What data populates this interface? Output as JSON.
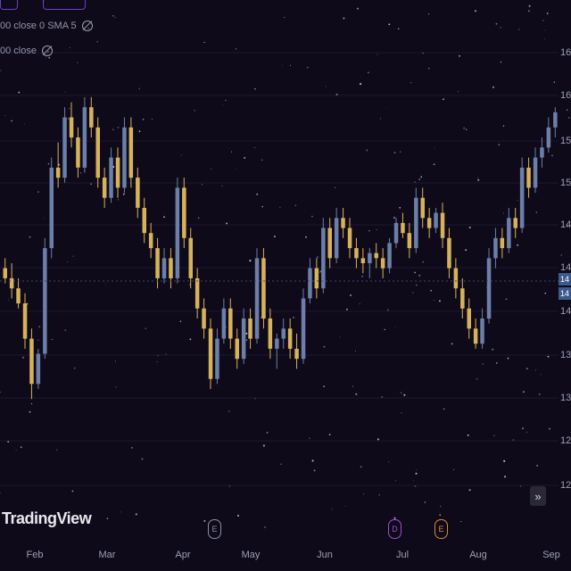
{
  "legend": {
    "line1": "00 close 0 SMA 5",
    "line2": "00 close"
  },
  "brand": "TradingView",
  "scroll_glyph": "»",
  "events": [
    {
      "letter": "E",
      "color": "#8a8fa3"
    },
    {
      "letter": "D",
      "color": "#9b4fd6"
    },
    {
      "letter": "E",
      "color": "#d38a3a"
    }
  ],
  "price_labels": [
    "16",
    "16",
    "15",
    "15",
    "14",
    "14",
    "14",
    "13",
    "13",
    "12",
    "12"
  ],
  "price_tags": {
    "upper": "14",
    "lower": "14"
  },
  "colors": {
    "up": "#6b7fa8",
    "down": "#d6b25a",
    "background": "#0f0a1a"
  },
  "chart_data": {
    "type": "candlestick",
    "x_labels": [
      "Feb",
      "Mar",
      "Apr",
      "May",
      "Jun",
      "Jul",
      "Aug",
      "Sep"
    ],
    "ylim": [
      11.8,
      16.5
    ],
    "series": [
      {
        "o": 14.1,
        "h": 14.2,
        "l": 13.95,
        "c": 14.0
      },
      {
        "o": 14.0,
        "h": 14.15,
        "l": 13.8,
        "c": 13.9
      },
      {
        "o": 13.9,
        "h": 14.0,
        "l": 13.7,
        "c": 13.75
      },
      {
        "o": 13.75,
        "h": 13.85,
        "l": 13.3,
        "c": 13.4
      },
      {
        "o": 13.4,
        "h": 13.5,
        "l": 12.8,
        "c": 12.95
      },
      {
        "o": 12.95,
        "h": 13.3,
        "l": 12.9,
        "c": 13.25
      },
      {
        "o": 13.25,
        "h": 14.4,
        "l": 13.2,
        "c": 14.3
      },
      {
        "o": 14.3,
        "h": 15.2,
        "l": 14.2,
        "c": 15.1
      },
      {
        "o": 15.1,
        "h": 15.35,
        "l": 14.9,
        "c": 15.0
      },
      {
        "o": 15.0,
        "h": 15.7,
        "l": 14.95,
        "c": 15.6
      },
      {
        "o": 15.6,
        "h": 15.75,
        "l": 15.3,
        "c": 15.4
      },
      {
        "o": 15.4,
        "h": 15.5,
        "l": 15.0,
        "c": 15.1
      },
      {
        "o": 15.1,
        "h": 15.8,
        "l": 15.05,
        "c": 15.7
      },
      {
        "o": 15.7,
        "h": 15.8,
        "l": 15.4,
        "c": 15.5
      },
      {
        "o": 15.5,
        "h": 15.6,
        "l": 14.9,
        "c": 15.0
      },
      {
        "o": 15.0,
        "h": 15.1,
        "l": 14.7,
        "c": 14.8
      },
      {
        "o": 14.8,
        "h": 15.3,
        "l": 14.75,
        "c": 15.2
      },
      {
        "o": 15.2,
        "h": 15.3,
        "l": 14.8,
        "c": 14.9
      },
      {
        "o": 14.9,
        "h": 15.6,
        "l": 14.85,
        "c": 15.5
      },
      {
        "o": 15.5,
        "h": 15.6,
        "l": 14.9,
        "c": 15.0
      },
      {
        "o": 15.0,
        "h": 15.1,
        "l": 14.6,
        "c": 14.7
      },
      {
        "o": 14.7,
        "h": 14.8,
        "l": 14.35,
        "c": 14.45
      },
      {
        "o": 14.45,
        "h": 14.55,
        "l": 14.2,
        "c": 14.3
      },
      {
        "o": 14.3,
        "h": 14.4,
        "l": 13.9,
        "c": 14.0
      },
      {
        "o": 14.0,
        "h": 14.3,
        "l": 13.95,
        "c": 14.2
      },
      {
        "o": 14.2,
        "h": 14.3,
        "l": 13.9,
        "c": 14.0
      },
      {
        "o": 14.0,
        "h": 15.0,
        "l": 13.95,
        "c": 14.9
      },
      {
        "o": 14.9,
        "h": 15.0,
        "l": 14.3,
        "c": 14.4
      },
      {
        "o": 14.4,
        "h": 14.5,
        "l": 13.9,
        "c": 14.0
      },
      {
        "o": 14.0,
        "h": 14.1,
        "l": 13.6,
        "c": 13.7
      },
      {
        "o": 13.7,
        "h": 13.8,
        "l": 13.4,
        "c": 13.5
      },
      {
        "o": 13.5,
        "h": 13.6,
        "l": 12.9,
        "c": 13.0
      },
      {
        "o": 13.0,
        "h": 13.5,
        "l": 12.95,
        "c": 13.4
      },
      {
        "o": 13.4,
        "h": 13.8,
        "l": 13.35,
        "c": 13.7
      },
      {
        "o": 13.7,
        "h": 13.8,
        "l": 13.3,
        "c": 13.4
      },
      {
        "o": 13.4,
        "h": 13.5,
        "l": 13.1,
        "c": 13.2
      },
      {
        "o": 13.2,
        "h": 13.7,
        "l": 13.15,
        "c": 13.6
      },
      {
        "o": 13.6,
        "h": 13.7,
        "l": 13.3,
        "c": 13.4
      },
      {
        "o": 13.4,
        "h": 14.3,
        "l": 13.35,
        "c": 14.2
      },
      {
        "o": 14.2,
        "h": 14.3,
        "l": 13.5,
        "c": 13.6
      },
      {
        "o": 13.6,
        "h": 13.7,
        "l": 13.2,
        "c": 13.3
      },
      {
        "o": 13.3,
        "h": 13.45,
        "l": 13.1,
        "c": 13.4
      },
      {
        "o": 13.4,
        "h": 13.6,
        "l": 13.3,
        "c": 13.5
      },
      {
        "o": 13.5,
        "h": 13.6,
        "l": 13.2,
        "c": 13.3
      },
      {
        "o": 13.3,
        "h": 13.45,
        "l": 13.1,
        "c": 13.2
      },
      {
        "o": 13.2,
        "h": 13.9,
        "l": 13.15,
        "c": 13.8
      },
      {
        "o": 13.8,
        "h": 14.2,
        "l": 13.75,
        "c": 14.1
      },
      {
        "o": 14.1,
        "h": 14.2,
        "l": 13.8,
        "c": 13.9
      },
      {
        "o": 13.9,
        "h": 14.6,
        "l": 13.85,
        "c": 14.5
      },
      {
        "o": 14.5,
        "h": 14.6,
        "l": 14.1,
        "c": 14.2
      },
      {
        "o": 14.2,
        "h": 14.7,
        "l": 14.15,
        "c": 14.6
      },
      {
        "o": 14.6,
        "h": 14.7,
        "l": 14.4,
        "c": 14.5
      },
      {
        "o": 14.5,
        "h": 14.6,
        "l": 14.2,
        "c": 14.3
      },
      {
        "o": 14.3,
        "h": 14.4,
        "l": 14.1,
        "c": 14.2
      },
      {
        "o": 14.2,
        "h": 14.3,
        "l": 14.05,
        "c": 14.15
      },
      {
        "o": 14.15,
        "h": 14.3,
        "l": 14.0,
        "c": 14.25
      },
      {
        "o": 14.25,
        "h": 14.35,
        "l": 14.1,
        "c": 14.2
      },
      {
        "o": 14.2,
        "h": 14.3,
        "l": 14.0,
        "c": 14.1
      },
      {
        "o": 14.1,
        "h": 14.4,
        "l": 14.05,
        "c": 14.35
      },
      {
        "o": 14.35,
        "h": 14.6,
        "l": 14.3,
        "c": 14.55
      },
      {
        "o": 14.55,
        "h": 14.65,
        "l": 14.4,
        "c": 14.45
      },
      {
        "o": 14.45,
        "h": 14.55,
        "l": 14.2,
        "c": 14.3
      },
      {
        "o": 14.3,
        "h": 14.9,
        "l": 14.25,
        "c": 14.8
      },
      {
        "o": 14.8,
        "h": 14.9,
        "l": 14.5,
        "c": 14.6
      },
      {
        "o": 14.6,
        "h": 14.7,
        "l": 14.4,
        "c": 14.5
      },
      {
        "o": 14.5,
        "h": 14.7,
        "l": 14.45,
        "c": 14.65
      },
      {
        "o": 14.65,
        "h": 14.75,
        "l": 14.3,
        "c": 14.4
      },
      {
        "o": 14.4,
        "h": 14.5,
        "l": 14.0,
        "c": 14.1
      },
      {
        "o": 14.1,
        "h": 14.2,
        "l": 13.8,
        "c": 13.9
      },
      {
        "o": 13.9,
        "h": 14.0,
        "l": 13.6,
        "c": 13.7
      },
      {
        "o": 13.7,
        "h": 13.8,
        "l": 13.4,
        "c": 13.5
      },
      {
        "o": 13.5,
        "h": 13.6,
        "l": 13.3,
        "c": 13.35
      },
      {
        "o": 13.35,
        "h": 13.7,
        "l": 13.3,
        "c": 13.6
      },
      {
        "o": 13.6,
        "h": 14.3,
        "l": 13.55,
        "c": 14.2
      },
      {
        "o": 14.2,
        "h": 14.5,
        "l": 14.1,
        "c": 14.4
      },
      {
        "o": 14.4,
        "h": 14.5,
        "l": 14.2,
        "c": 14.3
      },
      {
        "o": 14.3,
        "h": 14.7,
        "l": 14.25,
        "c": 14.6
      },
      {
        "o": 14.6,
        "h": 14.7,
        "l": 14.4,
        "c": 14.5
      },
      {
        "o": 14.5,
        "h": 15.2,
        "l": 14.45,
        "c": 15.1
      },
      {
        "o": 15.1,
        "h": 15.2,
        "l": 14.8,
        "c": 14.9
      },
      {
        "o": 14.9,
        "h": 15.3,
        "l": 14.85,
        "c": 15.2
      },
      {
        "o": 15.2,
        "h": 15.4,
        "l": 15.1,
        "c": 15.3
      },
      {
        "o": 15.3,
        "h": 15.6,
        "l": 15.25,
        "c": 15.5
      },
      {
        "o": 15.5,
        "h": 15.7,
        "l": 15.4,
        "c": 15.65
      }
    ]
  }
}
